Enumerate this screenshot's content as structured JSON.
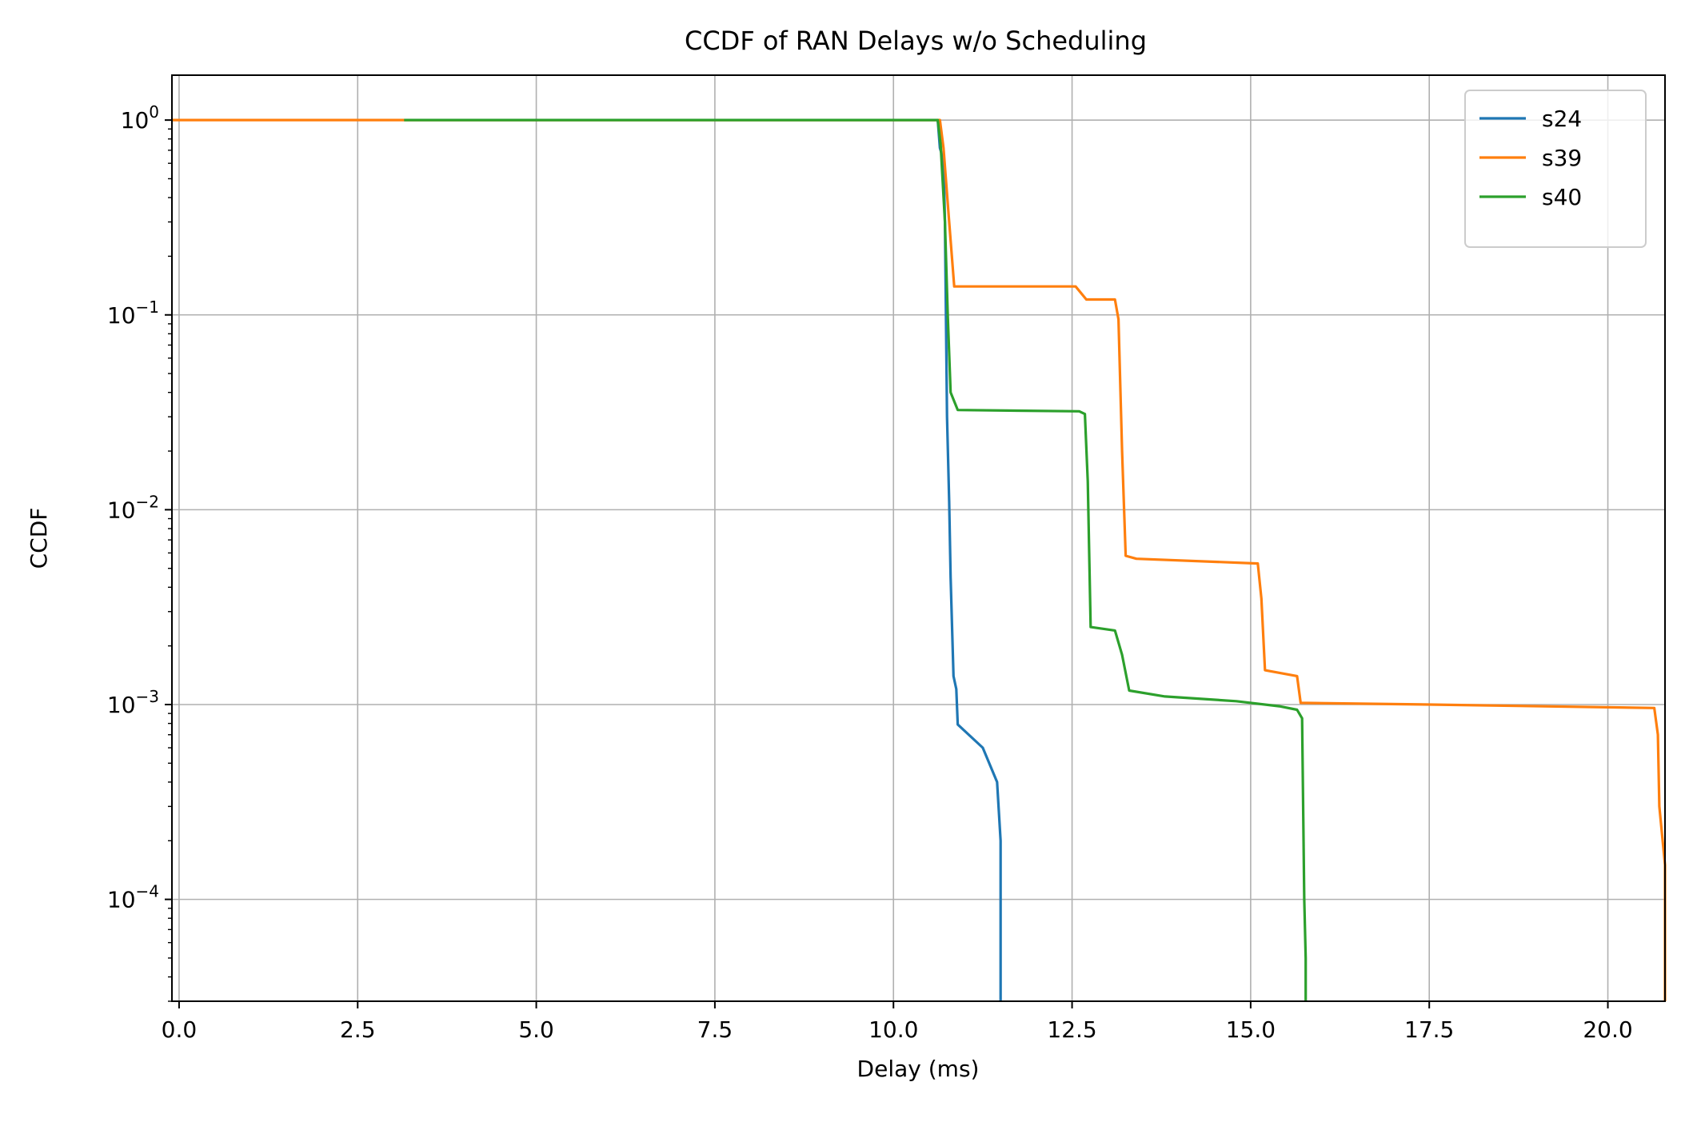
{
  "chart_data": {
    "type": "line",
    "title": "CCDF of RAN Delays w/o Scheduling",
    "xlabel": "Delay (ms)",
    "ylabel": "CCDF",
    "xlim": [
      -0.1,
      20.8
    ],
    "ylim": [
      3e-05,
      1.7
    ],
    "yscale": "log",
    "grid": true,
    "legend_position": "top-right",
    "x_ticks": [
      0.0,
      2.5,
      5.0,
      7.5,
      10.0,
      12.5,
      15.0,
      17.5,
      20.0
    ],
    "x_tick_labels": [
      "0.0",
      "2.5",
      "5.0",
      "7.5",
      "10.0",
      "12.5",
      "15.0",
      "17.5",
      "20.0"
    ],
    "y_ticks": [
      {
        "value": 1,
        "base": "10",
        "exp": "0"
      },
      {
        "value": 0.1,
        "base": "10",
        "exp": "−1"
      },
      {
        "value": 0.01,
        "base": "10",
        "exp": "−2"
      },
      {
        "value": 0.001,
        "base": "10",
        "exp": "−3"
      },
      {
        "value": 0.0001,
        "base": "10",
        "exp": "−4"
      }
    ],
    "series": [
      {
        "name": "s24",
        "color": "#1f77b4",
        "points": [
          [
            10.62,
            1.0
          ],
          [
            10.65,
            0.72
          ],
          [
            10.7,
            0.62
          ],
          [
            10.72,
            0.3
          ],
          [
            10.75,
            0.03
          ],
          [
            10.78,
            0.011
          ],
          [
            10.8,
            0.0045
          ],
          [
            10.82,
            0.0025
          ],
          [
            10.84,
            0.0014
          ],
          [
            10.88,
            0.0012
          ],
          [
            10.9,
            0.00079
          ],
          [
            11.25,
            0.0006
          ],
          [
            11.45,
            0.0004
          ],
          [
            11.5,
            0.0002
          ],
          [
            11.5,
            3e-05
          ]
        ]
      },
      {
        "name": "s39",
        "color": "#ff7f0e",
        "points": [
          [
            -0.1,
            1.0
          ],
          [
            10.65,
            1.0
          ],
          [
            10.7,
            0.72
          ],
          [
            10.78,
            0.3
          ],
          [
            10.85,
            0.14
          ],
          [
            12.55,
            0.14
          ],
          [
            12.7,
            0.12
          ],
          [
            13.1,
            0.12
          ],
          [
            13.15,
            0.095
          ],
          [
            13.2,
            0.02
          ],
          [
            13.25,
            0.0058
          ],
          [
            13.4,
            0.0056
          ],
          [
            15.1,
            0.0053
          ],
          [
            15.15,
            0.0035
          ],
          [
            15.2,
            0.0015
          ],
          [
            15.65,
            0.0014
          ],
          [
            15.7,
            0.00102
          ],
          [
            17.5,
            0.001
          ],
          [
            20.65,
            0.00096
          ],
          [
            20.7,
            0.0007
          ],
          [
            20.72,
            0.0003
          ],
          [
            20.8,
            0.00015
          ],
          [
            20.8,
            3e-05
          ]
        ]
      },
      {
        "name": "s40",
        "color": "#2ca02c",
        "points": [
          [
            3.15,
            1.0
          ],
          [
            10.62,
            1.0
          ],
          [
            10.66,
            0.75
          ],
          [
            10.72,
            0.3
          ],
          [
            10.76,
            0.1
          ],
          [
            10.8,
            0.04
          ],
          [
            10.9,
            0.0325
          ],
          [
            12.6,
            0.032
          ],
          [
            12.68,
            0.031
          ],
          [
            12.72,
            0.014
          ],
          [
            12.76,
            0.0025
          ],
          [
            13.1,
            0.0024
          ],
          [
            13.2,
            0.0018
          ],
          [
            13.3,
            0.00118
          ],
          [
            13.8,
            0.0011
          ],
          [
            14.8,
            0.00104
          ],
          [
            15.4,
            0.00098
          ],
          [
            15.65,
            0.00094
          ],
          [
            15.72,
            0.00085
          ],
          [
            15.75,
            0.0001
          ],
          [
            15.77,
            5e-05
          ],
          [
            15.77,
            3e-05
          ]
        ]
      }
    ]
  }
}
